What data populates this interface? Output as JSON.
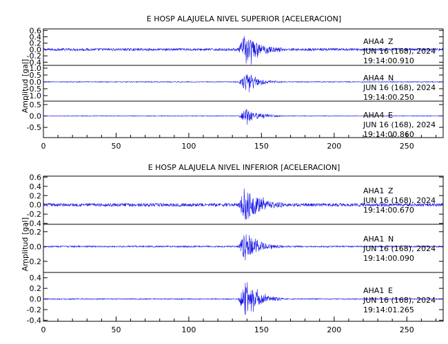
{
  "chart_data": [
    {
      "type": "line",
      "title": "E HOSP ALAJUELA NIVEL SUPERIOR [ACELERACION]",
      "ylabel": "Amplitud [gal]",
      "x_ticks": [
        "0",
        "50",
        "100",
        "150",
        "200",
        "250"
      ],
      "xlim": [
        0,
        275
      ],
      "waveform": {
        "color": "#1515e6",
        "onset_s": 134,
        "peak_s": 139,
        "coda_end_s": 165
      },
      "traces": [
        {
          "station": "AHA4",
          "component": "Z",
          "date": "JUN 16 (168), 2024",
          "time": "19:14:00.910",
          "ylim": [
            -0.5,
            0.65
          ],
          "y_ticks": [
            "0.6",
            "0.4",
            "0.2",
            "0.0",
            "-0.2",
            "-0.4"
          ],
          "noise_amp": 0.04,
          "peak_amp": 0.75
        },
        {
          "station": "AHA4",
          "component": "N",
          "date": "JUN 16 (168), 2024",
          "time": "19:14:00.250",
          "ylim": [
            -1.4,
            1.2
          ],
          "y_ticks": [
            "1.0",
            "0.5",
            "0.0",
            "-0.5",
            "-1.0"
          ],
          "noise_amp": 0.03,
          "peak_amp": 1.0
        },
        {
          "station": "AHA4",
          "component": "E",
          "date": "JUN 16 (168), 2024",
          "time": "19:14:00.860",
          "ylim": [
            -0.95,
            0.65
          ],
          "y_ticks": [
            "0.5",
            "0.0",
            "-0.5"
          ],
          "noise_amp": 0.015,
          "peak_amp": 0.5
        }
      ]
    },
    {
      "type": "line",
      "title": "E HOSP ALAJUELA NIVEL INFERIOR [ACELERACION]",
      "ylabel": "Amplitud [gal]",
      "x_ticks": [
        "0",
        "50",
        "100",
        "150",
        "200",
        "250"
      ],
      "xlim": [
        0,
        275
      ],
      "waveform": {
        "color": "#1515e6",
        "onset_s": 134,
        "peak_s": 139,
        "coda_end_s": 165
      },
      "traces": [
        {
          "station": "AHA1",
          "component": "Z",
          "date": "JUN 16 (168), 2024",
          "time": "19:14:00.670",
          "ylim": [
            -0.42,
            0.62
          ],
          "y_ticks": [
            "0.6",
            "0.4",
            "0.2",
            "0.0",
            "-0.2",
            "-0.4"
          ],
          "noise_amp": 0.035,
          "peak_amp": 0.6
        },
        {
          "station": "AHA1",
          "component": "N",
          "date": "JUN 16 (168), 2024",
          "time": "19:14:00.090",
          "ylim": [
            -0.35,
            0.3
          ],
          "y_ticks": [
            "0.2",
            "0.0",
            "-0.2"
          ],
          "noise_amp": 0.01,
          "peak_amp": 0.3
        },
        {
          "station": "AHA1",
          "component": "E",
          "date": "JUN 16 (168), 2024",
          "time": "19:14:01.265",
          "ylim": [
            -0.42,
            0.5
          ],
          "y_ticks": [
            "0.4",
            "0.2",
            "0.0",
            "-0.2",
            "-0.4"
          ],
          "noise_amp": 0.01,
          "peak_amp": 0.5
        }
      ]
    }
  ]
}
